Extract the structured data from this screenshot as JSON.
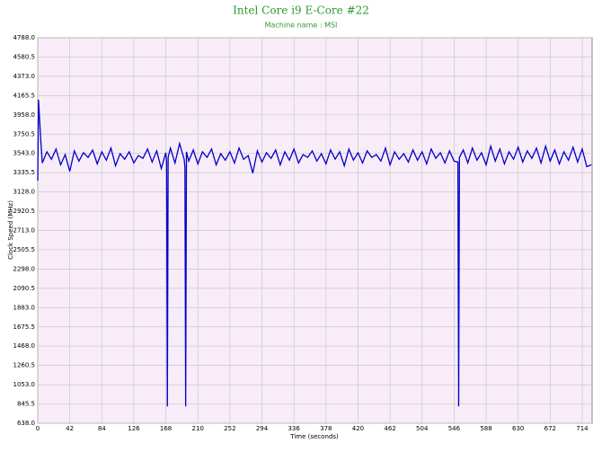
{
  "chart_data": {
    "type": "line",
    "title": "Intel Core i9 E-Core #22",
    "subtitle": "Machine name : MSI",
    "x_label": "Time (seconds)",
    "y_label": "Clock Speed (MHz)",
    "grid": true,
    "xlim": [
      0,
      727
    ],
    "ylim": [
      638,
      4788
    ],
    "xticks": [
      0,
      42,
      84,
      126,
      168,
      210,
      252,
      294,
      336,
      378,
      420,
      462,
      504,
      546,
      588,
      630,
      672,
      714
    ],
    "yticks": [
      {
        "value": 638,
        "label": "638.0"
      },
      845.5,
      {
        "value": 1053,
        "label": "1053.0"
      },
      1260.5,
      {
        "value": 1468,
        "label": "1468.0"
      },
      1675.5,
      {
        "value": 1883,
        "label": "1883.0"
      },
      2090.5,
      {
        "value": 2298,
        "label": "2298.0"
      },
      2505.5,
      {
        "value": 2713,
        "label": "2713.0"
      },
      2920.5,
      {
        "value": 3128,
        "label": "3128.0"
      },
      3335.5,
      {
        "value": 3543,
        "label": "3543.0"
      },
      3750.5,
      {
        "value": 3958,
        "label": "3958.0"
      },
      4165.5,
      {
        "value": 4373,
        "label": "4373.0"
      },
      4580.5,
      {
        "value": 4788,
        "label": "4788.0"
      }
    ],
    "x": [
      0,
      1,
      4,
      6,
      12,
      18,
      24,
      30,
      36,
      42,
      48,
      54,
      60,
      66,
      72,
      78,
      84,
      90,
      96,
      102,
      108,
      114,
      120,
      126,
      132,
      138,
      144,
      150,
      156,
      162,
      168,
      169,
      170,
      171,
      174,
      180,
      186,
      192,
      193,
      194,
      195,
      198,
      204,
      210,
      216,
      222,
      228,
      234,
      240,
      246,
      252,
      258,
      264,
      270,
      276,
      282,
      288,
      294,
      300,
      306,
      312,
      318,
      324,
      330,
      336,
      342,
      348,
      354,
      360,
      366,
      372,
      378,
      384,
      390,
      396,
      402,
      408,
      414,
      420,
      426,
      432,
      438,
      444,
      450,
      456,
      462,
      468,
      474,
      480,
      486,
      492,
      498,
      504,
      510,
      516,
      522,
      528,
      534,
      540,
      546,
      551,
      552,
      553,
      558,
      564,
      570,
      576,
      582,
      588,
      594,
      600,
      606,
      612,
      618,
      624,
      630,
      636,
      642,
      648,
      654,
      660,
      666,
      672,
      678,
      684,
      690,
      696,
      702,
      708,
      714,
      720,
      726
    ],
    "series": [
      {
        "color": "#0000c8",
        "values": [
          3250,
          4120,
          3680,
          3440,
          3560,
          3480,
          3590,
          3420,
          3530,
          3350,
          3570,
          3460,
          3550,
          3500,
          3580,
          3430,
          3560,
          3470,
          3600,
          3410,
          3540,
          3480,
          3560,
          3440,
          3520,
          3490,
          3590,
          3450,
          3570,
          3380,
          3550,
          3450,
          820,
          3500,
          3600,
          3440,
          3650,
          3480,
          3400,
          820,
          3560,
          3460,
          3580,
          3430,
          3560,
          3500,
          3590,
          3420,
          3540,
          3470,
          3560,
          3440,
          3600,
          3480,
          3520,
          3330,
          3570,
          3450,
          3550,
          3490,
          3580,
          3420,
          3560,
          3470,
          3590,
          3440,
          3530,
          3500,
          3570,
          3460,
          3540,
          3430,
          3580,
          3480,
          3560,
          3410,
          3590,
          3470,
          3550,
          3440,
          3570,
          3500,
          3530,
          3460,
          3600,
          3420,
          3560,
          3480,
          3540,
          3450,
          3580,
          3470,
          3560,
          3430,
          3590,
          3490,
          3550,
          3440,
          3570,
          3460,
          3450,
          820,
          3500,
          3580,
          3440,
          3600,
          3470,
          3550,
          3420,
          3620,
          3460,
          3590,
          3430,
          3560,
          3480,
          3610,
          3450,
          3570,
          3490,
          3600,
          3440,
          3620,
          3460,
          3580,
          3430,
          3560,
          3470,
          3610,
          3450,
          3590,
          3400,
          3420
        ]
      }
    ]
  }
}
